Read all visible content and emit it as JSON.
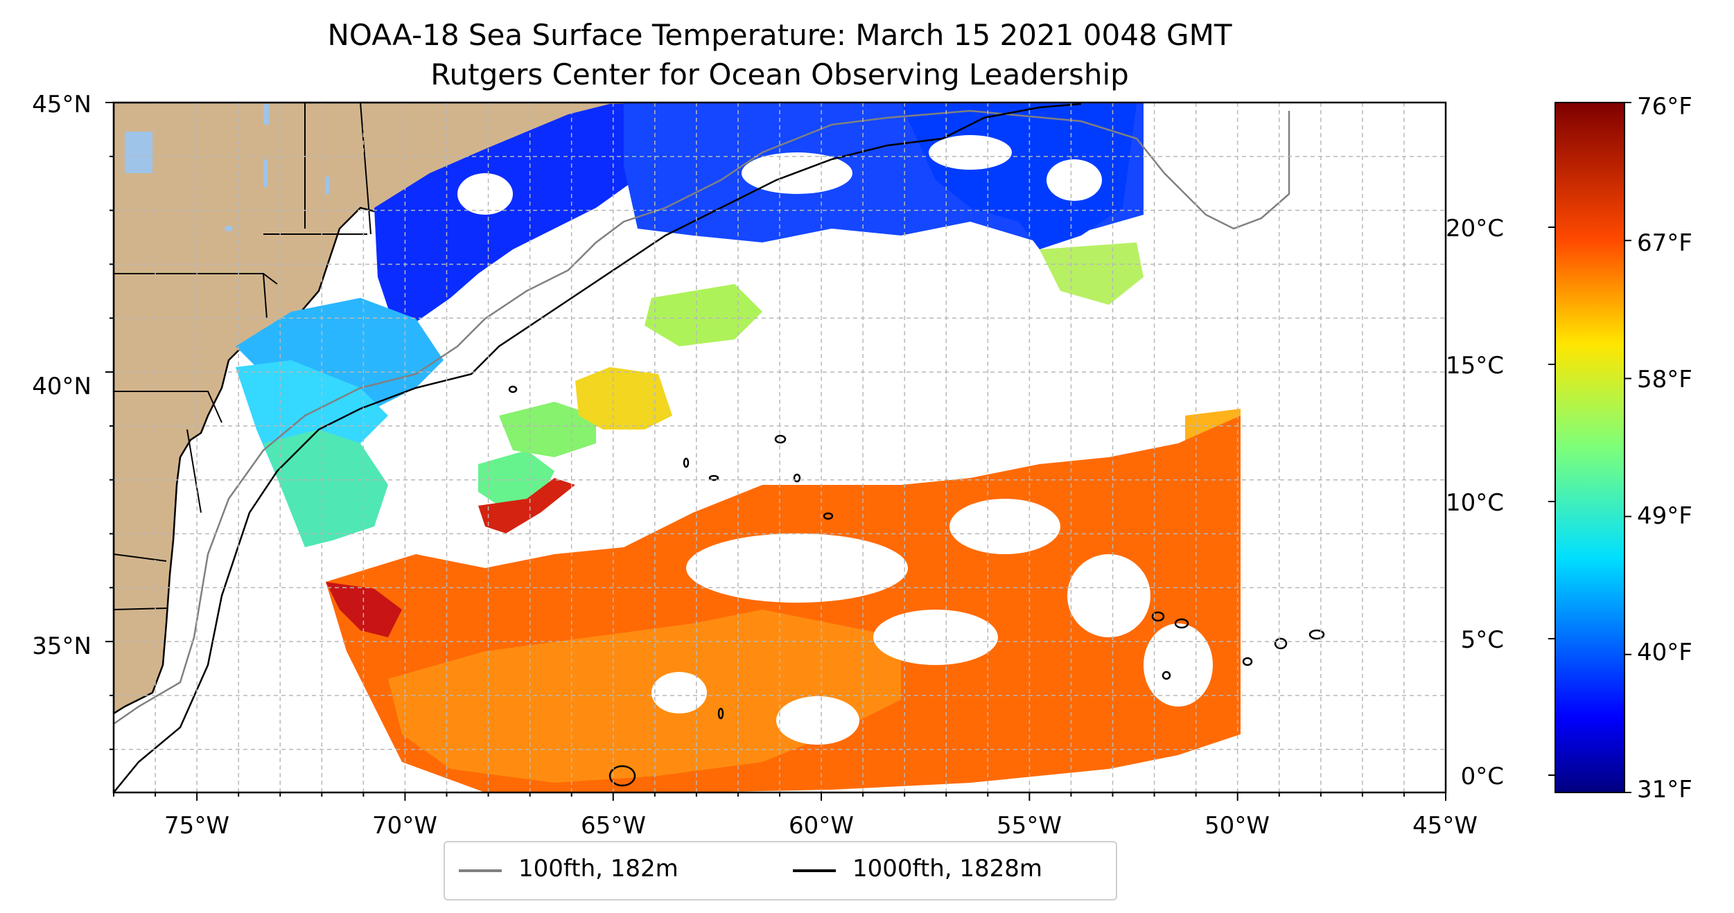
{
  "map": {
    "title_line1": "NOAA-18 Sea Surface Temperature: March 15 2021 0048 GMT",
    "title_line2": "Rutgers Center for Ocean Observing Leadership",
    "lat_ticks": [
      "45°N",
      "40°N",
      "35°N"
    ],
    "lon_ticks": [
      "75°W",
      "70°W",
      "65°W",
      "60°W",
      "55°W",
      "50°W",
      "45°W"
    ],
    "extent": {
      "lon_min": -77,
      "lon_max": -45,
      "lat_min": 32.2,
      "lat_max": 45
    },
    "gridlines": true,
    "land_color": "#d2b48c",
    "lake_color": "#9ec4ea",
    "ocean_color": "#ffffff"
  },
  "colorbar": {
    "celsius_ticks": [
      "20°C",
      "15°C",
      "10°C",
      "5°C",
      "0°C"
    ],
    "fahrenheit_ticks": [
      "76°F",
      "67°F",
      "58°F",
      "49°F",
      "40°F",
      "31°F"
    ],
    "colormap": "jet"
  },
  "legend": {
    "items": [
      {
        "label": "100fth, 182m",
        "color": "#808080"
      },
      {
        "label": "1000fth, 1828m",
        "color": "#000000"
      }
    ],
    "placement": "bottom-center"
  }
}
